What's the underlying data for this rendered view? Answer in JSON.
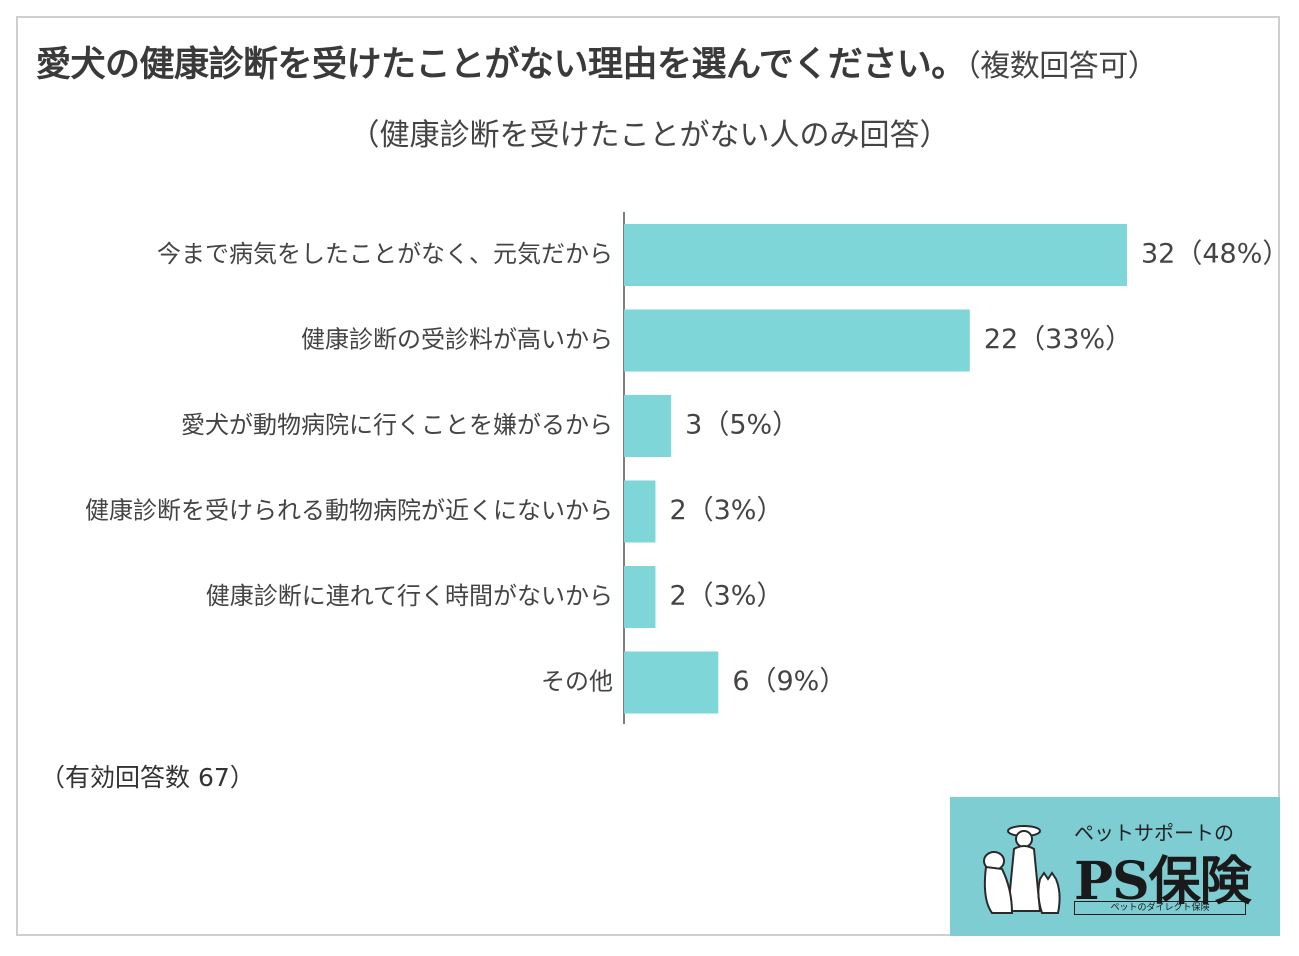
{
  "title": "愛犬の健康診断を受けたことがない理由を選んでください。",
  "title_note": "（複数回答可）",
  "subtitle": "（健康診断を受けたことがない人のみ回答）",
  "sample_note": "（有効回答数 67）",
  "colors": {
    "bar": "#7fd6d9",
    "axis": "#555555",
    "text": "#444444",
    "logo_bg": "#7ecdd3"
  },
  "chart_data": {
    "type": "bar",
    "orientation": "horizontal",
    "title": "愛犬の健康診断を受けたことがない理由を選んでください。",
    "subtitle": "（健康診断を受けたことがない人のみ回答）",
    "categories": [
      "今まで病気をしたことがなく、元気だから",
      "健康診断の受診料が高いから",
      "愛犬が動物病院に行くことを嫌がるから",
      "健康診断を受けられる動物病院が近くにないから",
      "健康診断に連れて行く時間がないから",
      "その他"
    ],
    "values": [
      32,
      22,
      3,
      2,
      2,
      6
    ],
    "data_labels": [
      "32（48%）",
      "22（33%）",
      "3（5%）",
      "2（3%）",
      "2（3%）",
      "6（9%）"
    ],
    "xlabel": "",
    "ylabel": "",
    "grid": false,
    "legend": "none"
  },
  "logo": {
    "tagline": "ペットサポートの",
    "name": "PS保険",
    "sub": "ペットのダイレクト保険",
    "mascot_icon": "woman-with-dog-and-cat-icon"
  }
}
